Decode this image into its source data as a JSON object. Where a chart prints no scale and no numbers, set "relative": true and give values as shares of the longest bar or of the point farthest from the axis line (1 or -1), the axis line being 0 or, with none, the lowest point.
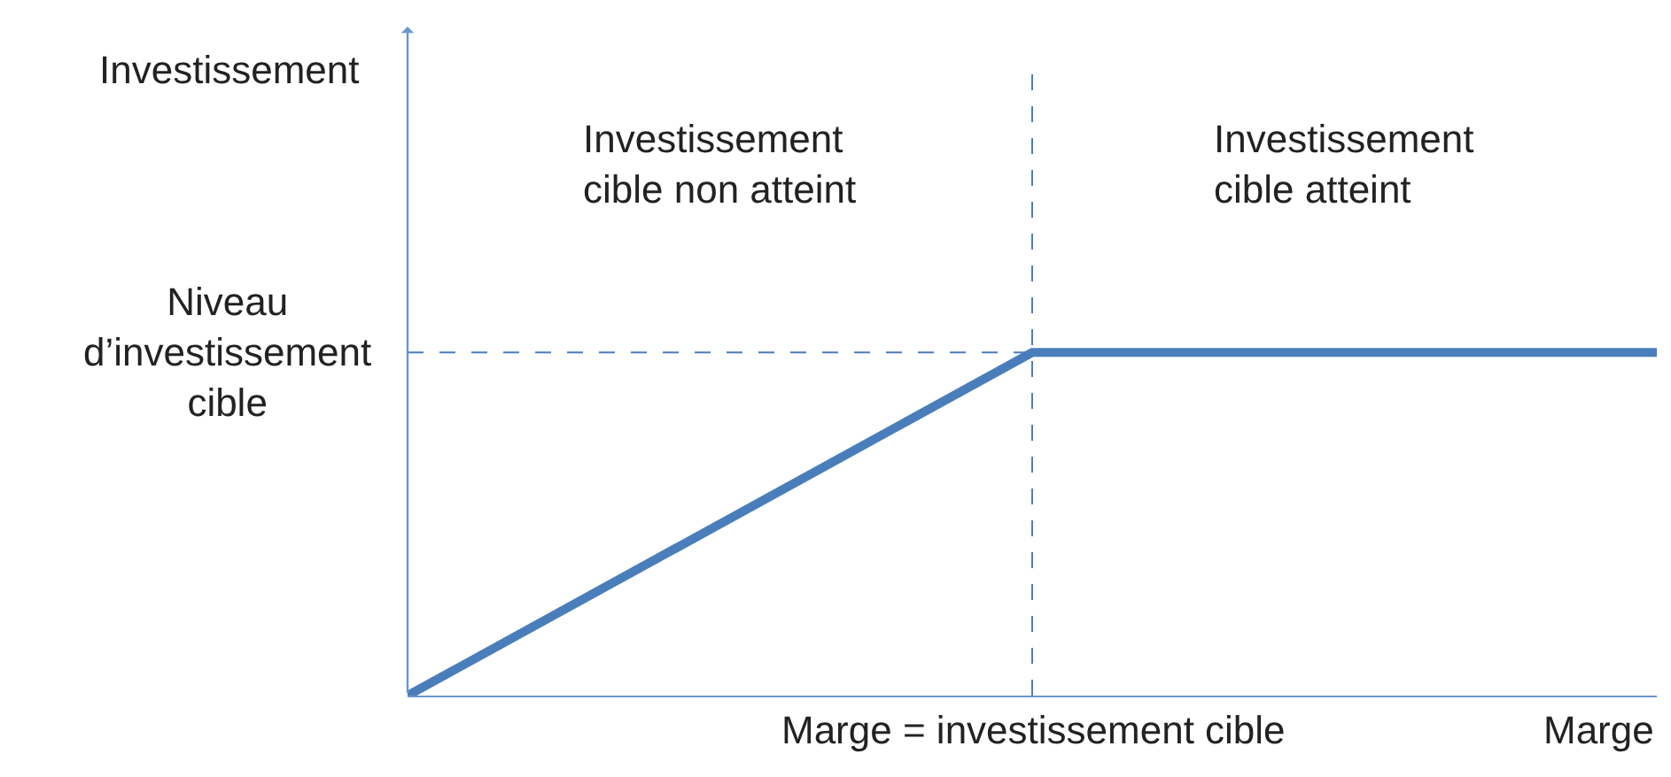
{
  "chart_data": {
    "type": "line",
    "relative": true,
    "xlabel": "Marge",
    "categories": [
      null,
      null,
      null
    ],
    "series": [
      {
        "color": "#4a7ebb",
        "values": [
          0,
          1,
          1
        ]
      }
    ],
    "ref_lines": [
      {
        "axis": "y",
        "value": 1,
        "label": "Niveau\nd’investissement\ncible",
        "color": "#4a7ebb",
        "line_style": "dashed"
      }
    ],
    "annotations": [
      "Investissement\ncible non atteint",
      "Investissement\ncible atteint",
      "Investissement",
      "Marge = investissement cible"
    ],
    "marker": "none",
    "line_style": "solid"
  }
}
